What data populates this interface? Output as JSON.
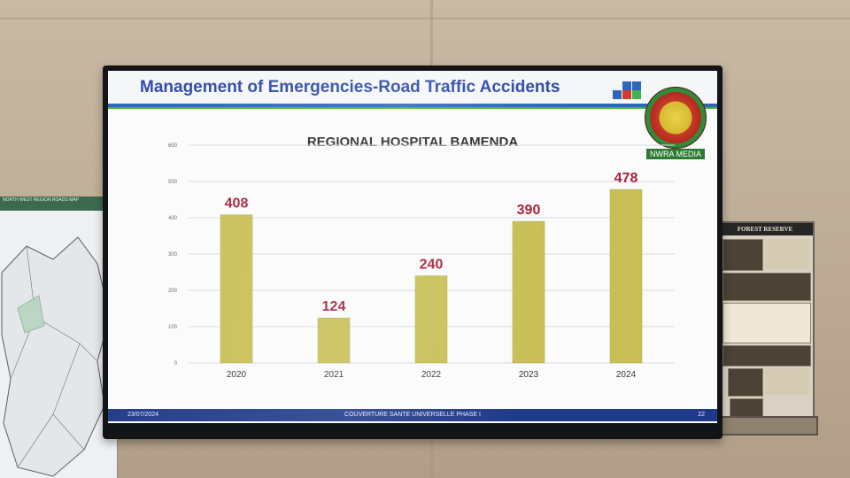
{
  "slide": {
    "title": "Management of Emergencies-Road Traffic Accidents",
    "watermark": "NWRA MEDIA",
    "footer_date": "23/07/2024",
    "footer_center": "COUVERTURE SANTE UNIVERSELLE PHASE I",
    "page_number": "22",
    "brand_colors": [
      "#d63a2c",
      "#2f67b8",
      "#46b04a",
      "#ffffff"
    ]
  },
  "posters": {
    "map_header": "NORTH WEST REGION\nROADS MAP",
    "forest_title": "FOREST RESERVE"
  },
  "chart_data": {
    "type": "bar",
    "title": "REGIONAL HOSPITAL BAMENDA",
    "categories": [
      "2020",
      "2021",
      "2022",
      "2023",
      "2024"
    ],
    "series": [
      {
        "values": [
          408,
          124,
          240,
          390,
          478
        ]
      }
    ],
    "data_labels": [
      "408",
      "124",
      "240",
      "390",
      "478"
    ],
    "y_ticks": [
      "0",
      "100",
      "200",
      "300",
      "400",
      "500",
      "600"
    ],
    "ylim": [
      0,
      600
    ],
    "grid": true,
    "bar_color": "#c9bf57",
    "label_color": "#a5203a"
  }
}
